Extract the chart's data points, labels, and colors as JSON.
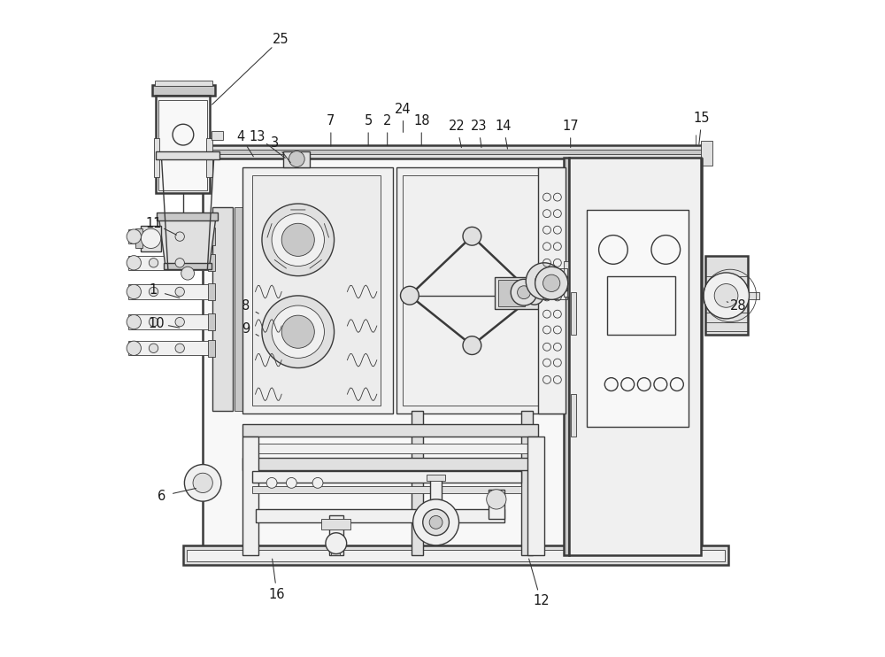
{
  "bg_color": "#ffffff",
  "lc": "#3a3a3a",
  "lc2": "#555555",
  "fc_light": "#f0f0f0",
  "fc_mid": "#e0e0e0",
  "fc_dark": "#c8c8c8",
  "fc_panel": "#f5f5f5",
  "lw_main": 1.0,
  "lw_thick": 1.8,
  "lw_thin": 0.6,
  "labels": [
    [
      25,
      0.253,
      0.94,
      0.145,
      0.837
    ],
    [
      13,
      0.218,
      0.792,
      0.265,
      0.756
    ],
    [
      4,
      0.193,
      0.792,
      0.215,
      0.757
    ],
    [
      3,
      0.245,
      0.783,
      0.272,
      0.748
    ],
    [
      7,
      0.33,
      0.816,
      0.33,
      0.772
    ],
    [
      5,
      0.387,
      0.816,
      0.387,
      0.773
    ],
    [
      2,
      0.416,
      0.816,
      0.416,
      0.773
    ],
    [
      24,
      0.44,
      0.834,
      0.44,
      0.793
    ],
    [
      18,
      0.468,
      0.816,
      0.468,
      0.773
    ],
    [
      22,
      0.522,
      0.808,
      0.53,
      0.77
    ],
    [
      23,
      0.555,
      0.808,
      0.56,
      0.77
    ],
    [
      14,
      0.593,
      0.808,
      0.6,
      0.768
    ],
    [
      17,
      0.695,
      0.808,
      0.695,
      0.77
    ],
    [
      15,
      0.895,
      0.82,
      0.89,
      0.775
    ],
    [
      11,
      0.06,
      0.66,
      0.1,
      0.64
    ],
    [
      1,
      0.06,
      0.558,
      0.105,
      0.545
    ],
    [
      10,
      0.065,
      0.508,
      0.105,
      0.5
    ],
    [
      8,
      0.2,
      0.534,
      0.225,
      0.52
    ],
    [
      9,
      0.2,
      0.5,
      0.225,
      0.486
    ],
    [
      6,
      0.072,
      0.245,
      0.13,
      0.258
    ],
    [
      16,
      0.248,
      0.095,
      0.24,
      0.155
    ],
    [
      12,
      0.65,
      0.085,
      0.63,
      0.155
    ],
    [
      28,
      0.95,
      0.535,
      0.935,
      0.54
    ]
  ]
}
